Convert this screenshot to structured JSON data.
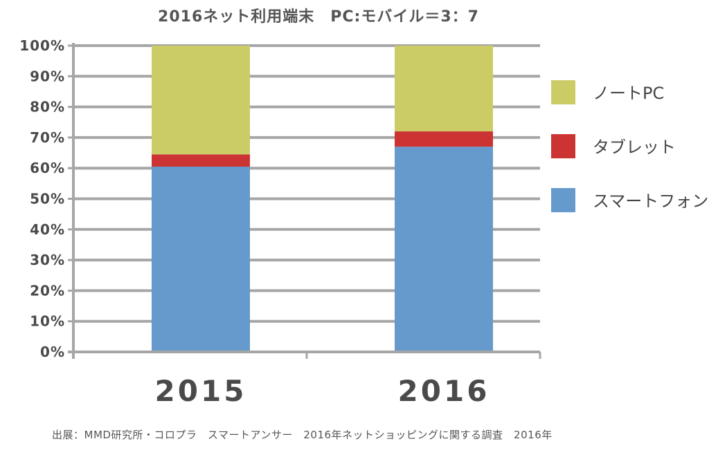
{
  "chart_data": {
    "type": "bar",
    "stacked": true,
    "title": "2016ネット利用端末　PC:モバイル＝3：7",
    "categories": [
      "2015",
      "2016"
    ],
    "series": [
      {
        "name": "スマートフォン",
        "values": [
          60.5,
          67
        ],
        "color": "#6699cc"
      },
      {
        "name": "タブレット",
        "values": [
          4,
          5
        ],
        "color": "#cc3333"
      },
      {
        "name": "ノートPC",
        "values": [
          35.5,
          28
        ],
        "color": "#cccc66"
      }
    ],
    "legend_order": [
      "ノートPC",
      "タブレット",
      "スマートフォン"
    ],
    "ylim": [
      0,
      100
    ],
    "yticks": [
      "0%",
      "10%",
      "20%",
      "30%",
      "40%",
      "50%",
      "60%",
      "70%",
      "80%",
      "90%",
      "100%"
    ],
    "grid": true,
    "legend_position": "right",
    "xlabel": "",
    "ylabel": ""
  },
  "source": "出展：MMD研究所・コロプラ　スマートアンサー　2016年ネットショッピングに関する調査　2016年",
  "colors": {
    "grid": "#a6a6a6",
    "text": "#4a4a4a"
  }
}
